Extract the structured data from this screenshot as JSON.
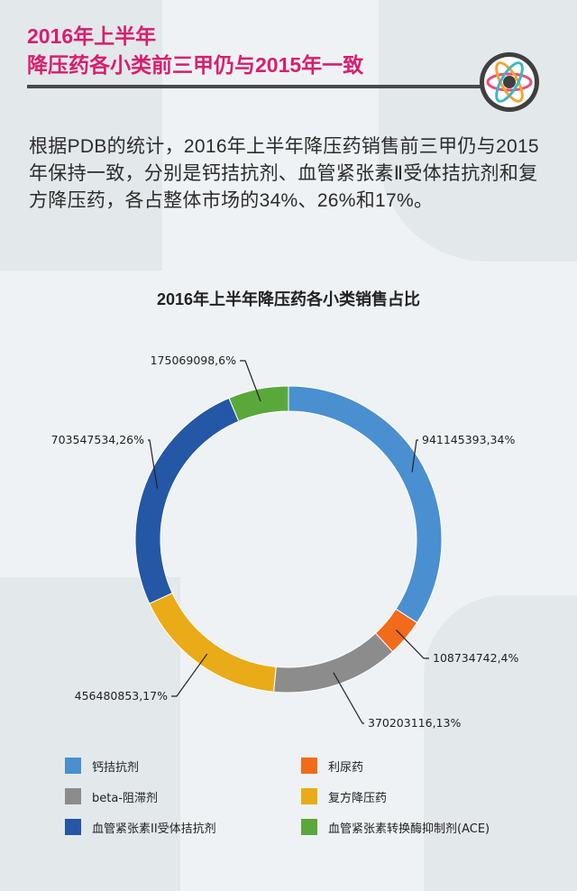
{
  "header": {
    "title_line1": "2016年上半年",
    "title_line2": "降压药各小类前三甲仍与2015年一致"
  },
  "intro": {
    "text": "根据PDB的统计，2016年上半年降压药销售前三甲仍与2015年保持一致，分别是钙拮抗剂、血管紧张素Ⅱ受体拮抗剂和复方降压药，各占整体市场的34%、26%和17%。"
  },
  "chart_data": {
    "type": "pie",
    "donut": true,
    "title": "2016年上半年降压药各小类销售占比",
    "series": [
      {
        "name": "钙拮抗剂",
        "value": 941145393,
        "percent": 34,
        "label": "941145393,34%",
        "color": "#4a8fd0"
      },
      {
        "name": "利尿药",
        "value": 108734742,
        "percent": 4,
        "label": "108734742,4%",
        "color": "#f26a1b"
      },
      {
        "name": "beta-阻滞剂",
        "value": 370203116,
        "percent": 13,
        "label": "370203116,13%",
        "color": "#8c8c8c"
      },
      {
        "name": "复方降压药",
        "value": 456480853,
        "percent": 17,
        "label": "456480853,17%",
        "color": "#e9ab17"
      },
      {
        "name": "血管紧张素II受体拮抗剂",
        "value": 703547534,
        "percent": 26,
        "label": "703547534,26%",
        "color": "#2457a6"
      },
      {
        "name": "血管紧张素转换酶抑制剂(ACE)",
        "value": 175069098,
        "percent": 6,
        "label": "175069098,6%",
        "color": "#5aa83c"
      }
    ],
    "legend_position": "bottom"
  }
}
